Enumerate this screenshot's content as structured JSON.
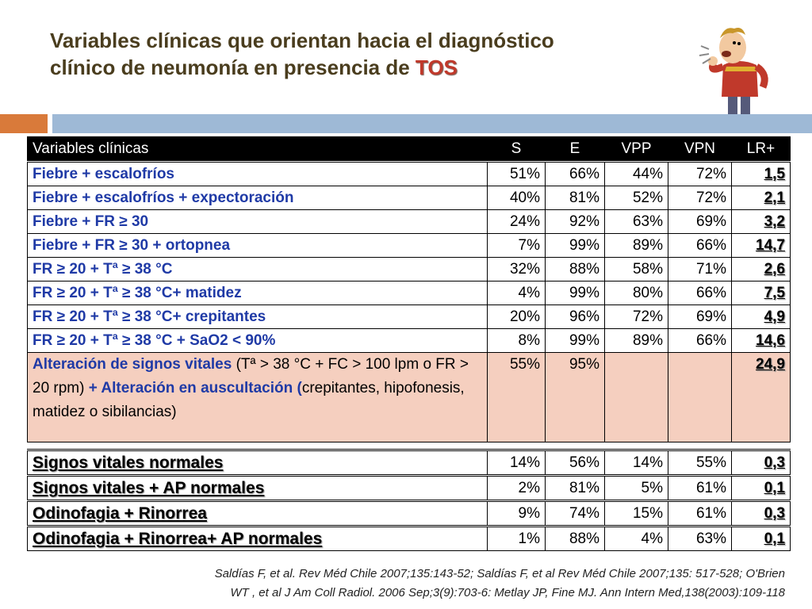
{
  "title": {
    "line1": "Variables clínicas que orientan hacia el diagnóstico",
    "line2_prefix": "clínico de neumonía en presencia de ",
    "line2_accent": "TOS"
  },
  "table": {
    "headers": [
      "Variables clínicas",
      "S",
      "E",
      "VPP",
      "VPN",
      "LR+"
    ],
    "rows": [
      {
        "label": "Fiebre + escalofríos",
        "s": "51%",
        "e": "66%",
        "vpp": "44%",
        "vpn": "72%",
        "lr": "1,5"
      },
      {
        "label": "Fiebre + escalofríos + expectoración",
        "s": "40%",
        "e": "81%",
        "vpp": "52%",
        "vpn": "72%",
        "lr": "2,1"
      },
      {
        "label": "Fiebre + FR ≥ 30",
        "s": "24%",
        "e": "92%",
        "vpp": "63%",
        "vpn": "69%",
        "lr": "3,2"
      },
      {
        "label": "Fiebre + FR ≥ 30 + ortopnea",
        "s": "7%",
        "e": "99%",
        "vpp": "89%",
        "vpn": "66%",
        "lr": "14,7"
      },
      {
        "label": "FR ≥ 20 + Tª ≥ 38 °C",
        "s": "32%",
        "e": "88%",
        "vpp": "58%",
        "vpn": "71%",
        "lr": "2,6"
      },
      {
        "label": "FR ≥ 20  + Tª ≥ 38 °C+ matidez",
        "s": "4%",
        "e": "99%",
        "vpp": "80%",
        "vpn": "66%",
        "lr": "7,5"
      },
      {
        "label": "FR ≥ 20 + Tª ≥ 38 °C+ crepitantes",
        "s": "20%",
        "e": "96%",
        "vpp": "72%",
        "vpn": "69%",
        "lr": "4,9"
      },
      {
        "label": "FR ≥ 20 + Tª ≥ 38 °C + SaO2 < 90%",
        "s": "8%",
        "e": "99%",
        "vpp": "89%",
        "vpn": "66%",
        "lr": "14,6"
      }
    ],
    "highlight": {
      "part1_bold": "Alteración de signos vitales",
      "part2": " (Tª > 38 °C + FC > 100 lpm o FR > 20 rpm) ",
      "part3_bold": "+ Alteración en auscultación (",
      "part4": "crepitantes, hipofonesis, matidez o sibilancias)",
      "s": "55%",
      "e": "95%",
      "vpp": "",
      "vpn": "",
      "lr": "24,9"
    },
    "low_rows": [
      {
        "label": "Signos vitales normales",
        "s": "14%",
        "e": "56%",
        "vpp": "14%",
        "vpn": "55%",
        "lr": "0,3"
      },
      {
        "label": "Signos vitales + AP normales",
        "s": "2%",
        "e": "81%",
        "vpp": "5%",
        "vpn": "61%",
        "lr": "0,1"
      },
      {
        "label": "Odinofagia + Rinorrea",
        "s": "9%",
        "e": "74%",
        "vpp": "15%",
        "vpn": "61%",
        "lr": "0,3"
      },
      {
        "label": "Odinofagia + Rinorrea+ AP normales",
        "s": "1%",
        "e": "88%",
        "vpp": "4%",
        "vpn": "63%",
        "lr": "0,1"
      }
    ]
  },
  "references": {
    "line1": "Saldías F, et al. Rev Méd Chile 2007;135:143-52; Saldías F, et al Rev Méd Chile 2007;135: 517-528;  O'Brien",
    "line2": "WT , et al J Am Coll Radiol. 2006 Sep;3(9):703-6: Metlay JP, Fine MJ. Ann Intern Med,138(2003):109-118"
  },
  "colors": {
    "title": "#4a3d1e",
    "accent": "#c0392b",
    "label_blue": "#1f3aa6",
    "highlight_row": "#f5cfbf",
    "bar_orange": "#d97a3a",
    "bar_blue": "#9eb9d6"
  },
  "illustration": {
    "icon": "coughing-man-icon"
  }
}
